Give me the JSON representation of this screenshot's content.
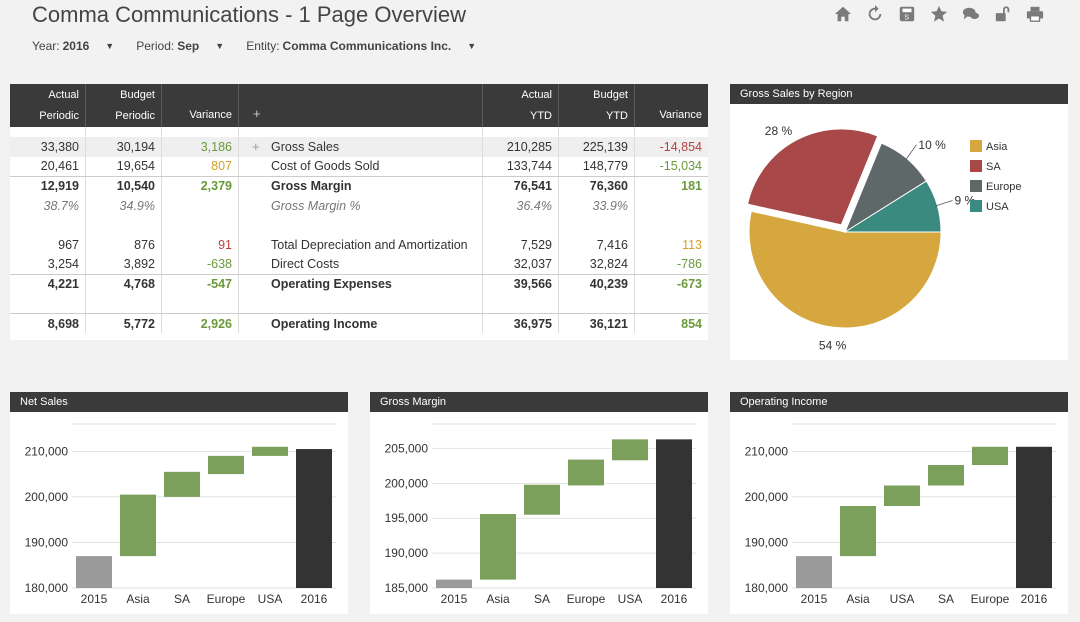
{
  "header": {
    "title": "Comma Communications - 1 Page Overview"
  },
  "toolbar": [
    {
      "name": "home-icon"
    },
    {
      "name": "refresh-icon"
    },
    {
      "name": "save-icon"
    },
    {
      "name": "star-icon"
    },
    {
      "name": "comments-icon"
    },
    {
      "name": "unlock-icon"
    },
    {
      "name": "print-icon"
    }
  ],
  "filters": {
    "year": {
      "label": "Year:",
      "value": "2016"
    },
    "period": {
      "label": "Period:",
      "value": "Sep"
    },
    "entity": {
      "label": "Entity:",
      "value": "Comma Communications Inc."
    }
  },
  "table": {
    "headers": {
      "actual_periodic": [
        "Actual",
        "Periodic"
      ],
      "budget_periodic": [
        "Budget",
        "Periodic"
      ],
      "variance_periodic": "Variance",
      "expand": "+",
      "actual_ytd": [
        "Actual",
        "YTD"
      ],
      "budget_ytd": [
        "Budget",
        "YTD"
      ],
      "variance_ytd": "Variance"
    },
    "rows": [
      {
        "a": "33,380",
        "b": "30,194",
        "v": "3,186",
        "vc": "pos",
        "label": "Gross Sales",
        "ay": "210,285",
        "by": "225,139",
        "vy": "-14,854",
        "vyc": "neg",
        "style": "shade",
        "plus": "+"
      },
      {
        "a": "20,461",
        "b": "19,654",
        "v": "807",
        "vc": "warn",
        "label": "Cost of Goods Sold",
        "ay": "133,744",
        "by": "148,779",
        "vy": "-15,034",
        "vyc": "pos",
        "style": ""
      },
      {
        "a": "12,919",
        "b": "10,540",
        "v": "2,379",
        "vc": "pos",
        "label": "Gross Margin",
        "ay": "76,541",
        "by": "76,360",
        "vy": "181",
        "vyc": "pos",
        "style": "bold topline"
      },
      {
        "a": "38.7%",
        "b": "34.9%",
        "v": "",
        "vc": "",
        "label": "Gross Margin %",
        "ay": "36.4%",
        "by": "33.9%",
        "vy": "",
        "vyc": "",
        "style": "ital"
      },
      {
        "a": "",
        "b": "",
        "v": "",
        "vc": "",
        "label": "",
        "ay": "",
        "by": "",
        "vy": "",
        "vyc": "",
        "style": ""
      },
      {
        "a": "967",
        "b": "876",
        "v": "91",
        "vc": "neg",
        "label": "Total Depreciation and Amortization",
        "ay": "7,529",
        "by": "7,416",
        "vy": "113",
        "vyc": "warn",
        "style": ""
      },
      {
        "a": "3,254",
        "b": "3,892",
        "v": "-638",
        "vc": "pos",
        "label": "Direct Costs",
        "ay": "32,037",
        "by": "32,824",
        "vy": "-786",
        "vyc": "pos",
        "style": ""
      },
      {
        "a": "4,221",
        "b": "4,768",
        "v": "-547",
        "vc": "pos",
        "label": "Operating Expenses",
        "ay": "39,566",
        "by": "40,239",
        "vy": "-673",
        "vyc": "pos",
        "style": "bold topline"
      },
      {
        "a": "",
        "b": "",
        "v": "",
        "vc": "",
        "label": "",
        "ay": "",
        "by": "",
        "vy": "",
        "vyc": "",
        "style": ""
      },
      {
        "a": "8,698",
        "b": "5,772",
        "v": "2,926",
        "vc": "pos",
        "label": "Operating Income",
        "ay": "36,975",
        "by": "36,121",
        "vy": "854",
        "vyc": "pos",
        "style": "bold topline"
      }
    ]
  },
  "colors": {
    "green": "#7ba05b",
    "grey": "#9a9a9a",
    "dark": "#333333",
    "asia": "#d6a73e",
    "sa": "#a84848",
    "europe": "#5f6868",
    "usa": "#3a8a80"
  },
  "chart_data": [
    {
      "type": "pie",
      "title": "Gross Sales by Region",
      "slices": [
        {
          "name": "Asia",
          "value": 54,
          "label": "54 %"
        },
        {
          "name": "SA",
          "value": 28,
          "label": "28 %"
        },
        {
          "name": "Europe",
          "value": 10,
          "label": "10 %"
        },
        {
          "name": "USA",
          "value": 9,
          "label": "9 %"
        }
      ],
      "legend": "top-right",
      "exploded": "SA"
    },
    {
      "type": "bar",
      "subtype": "waterfall",
      "title": "Net Sales",
      "categories": [
        "2015",
        "Asia",
        "SA",
        "Europe",
        "USA",
        "2016"
      ],
      "ranges": [
        [
          180000,
          187000
        ],
        [
          187000,
          200500
        ],
        [
          200000,
          205500
        ],
        [
          205000,
          209000
        ],
        [
          209000,
          211000
        ],
        [
          180000,
          210500
        ]
      ],
      "ylim": [
        180000,
        216000
      ],
      "yticks": [
        "180,000",
        "190,000",
        "200,000",
        "210,000"
      ],
      "ytick_values": [
        180000,
        190000,
        200000,
        210000
      ],
      "grid": true
    },
    {
      "type": "bar",
      "subtype": "waterfall",
      "title": "Gross Margin",
      "categories": [
        "2015",
        "Asia",
        "SA",
        "Europe",
        "USA",
        "2016"
      ],
      "ranges": [
        [
          185000,
          186200
        ],
        [
          186200,
          195600
        ],
        [
          195500,
          199800
        ],
        [
          199700,
          203400
        ],
        [
          203300,
          206300
        ],
        [
          185000,
          206300
        ]
      ],
      "ylim": [
        185000,
        208500
      ],
      "yticks": [
        "185,000",
        "190,000",
        "195,000",
        "200,000",
        "205,000"
      ],
      "ytick_values": [
        185000,
        190000,
        195000,
        200000,
        205000
      ],
      "grid": true
    },
    {
      "type": "bar",
      "subtype": "waterfall",
      "title": "Operating Income",
      "categories": [
        "2015",
        "Asia",
        "USA",
        "SA",
        "Europe",
        "2016"
      ],
      "ranges": [
        [
          180000,
          187000
        ],
        [
          187000,
          198000
        ],
        [
          198000,
          202500
        ],
        [
          202500,
          207000
        ],
        [
          207000,
          211000
        ],
        [
          180000,
          211000
        ]
      ],
      "ylim": [
        180000,
        216000
      ],
      "yticks": [
        "180,000",
        "190,000",
        "200,000",
        "210,000"
      ],
      "ytick_values": [
        180000,
        190000,
        200000,
        210000
      ],
      "grid": true
    }
  ]
}
